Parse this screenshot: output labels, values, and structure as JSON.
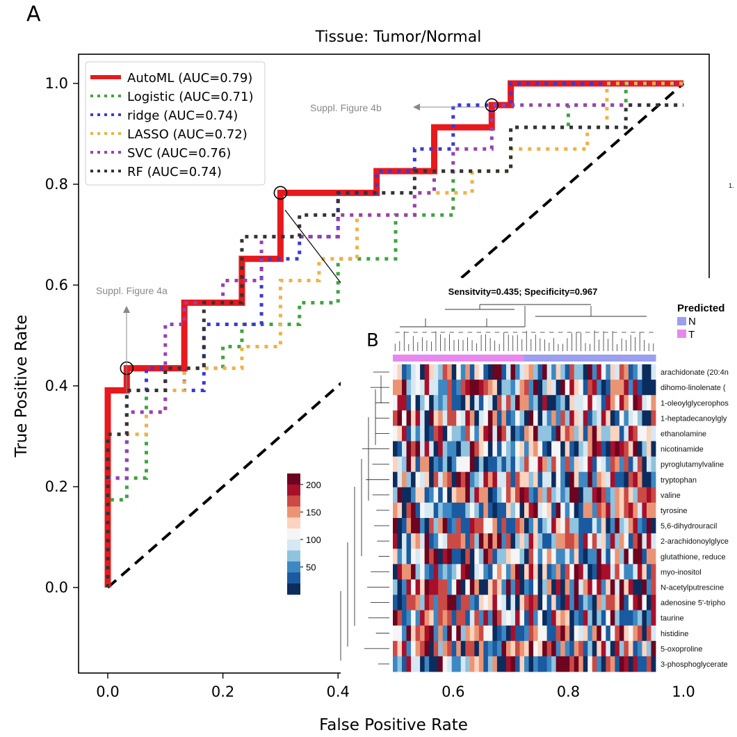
{
  "panel_a_label": "A",
  "panel_b_label": "B",
  "chart_data": [
    {
      "type": "line",
      "title": "Tissue: Tumor/Normal",
      "xlabel": "False Positive Rate",
      "ylabel": "True Positive Rate",
      "xlim": [
        0,
        1
      ],
      "ylim": [
        0,
        1
      ],
      "xticks": [
        "0.0",
        "0.2",
        "0.4",
        "0.6",
        "0.8",
        "1.0"
      ],
      "yticks": [
        "0.0",
        "0.2",
        "0.4",
        "0.6",
        "0.8",
        "1.0"
      ],
      "legend_position": "top-left",
      "grid": false,
      "series": [
        {
          "name": "AutoML (AUC=0.79)",
          "color": "#e8191c",
          "style": "solid",
          "x": [
            0,
            0,
            0.033,
            0.033,
            0.133,
            0.133,
            0.233,
            0.233,
            0.3,
            0.3,
            0.467,
            0.467,
            0.567,
            0.567,
            0.667,
            0.667,
            0.7,
            0.7,
            1.0
          ],
          "y": [
            0,
            0.391,
            0.391,
            0.435,
            0.435,
            0.565,
            0.565,
            0.652,
            0.652,
            0.783,
            0.783,
            0.826,
            0.826,
            0.913,
            0.913,
            0.957,
            0.957,
            1.0,
            1.0
          ]
        },
        {
          "name": "Logistic (AUC=0.71)",
          "color": "#3fa53f",
          "style": "dotted",
          "x": [
            0,
            0,
            0.033,
            0.033,
            0.067,
            0.067,
            0.1,
            0.1,
            0.2,
            0.2,
            0.233,
            0.233,
            0.333,
            0.333,
            0.4,
            0.4,
            0.5,
            0.5,
            0.6,
            0.6,
            0.7,
            0.7,
            0.8,
            0.8,
            0.9,
            0.9,
            1.0
          ],
          "y": [
            0,
            0.174,
            0.174,
            0.217,
            0.217,
            0.391,
            0.391,
            0.435,
            0.435,
            0.478,
            0.478,
            0.522,
            0.522,
            0.565,
            0.565,
            0.652,
            0.652,
            0.739,
            0.739,
            0.826,
            0.826,
            0.913,
            0.913,
            0.957,
            0.957,
            1.0,
            1.0
          ]
        },
        {
          "name": "ridge (AUC=0.74)",
          "color": "#3a3ad8",
          "style": "dotted",
          "x": [
            0,
            0,
            0.033,
            0.033,
            0.067,
            0.067,
            0.133,
            0.133,
            0.167,
            0.167,
            0.267,
            0.267,
            0.333,
            0.333,
            0.4,
            0.4,
            0.467,
            0.467,
            0.533,
            0.533,
            0.6,
            0.6,
            0.7,
            0.7,
            0.8,
            0.8,
            1.0
          ],
          "y": [
            0,
            0.217,
            0.217,
            0.391,
            0.391,
            0.435,
            0.435,
            0.391,
            0.391,
            0.522,
            0.522,
            0.652,
            0.652,
            0.696,
            0.696,
            0.783,
            0.783,
            0.826,
            0.826,
            0.87,
            0.87,
            0.957,
            0.957,
            1.0,
            1.0,
            1.0,
            1.0
          ]
        },
        {
          "name": "LASSO (AUC=0.72)",
          "color": "#f5b041",
          "style": "dotted",
          "x": [
            0,
            0,
            0.067,
            0.067,
            0.1,
            0.1,
            0.133,
            0.133,
            0.233,
            0.233,
            0.3,
            0.3,
            0.367,
            0.367,
            0.433,
            0.433,
            0.533,
            0.533,
            0.633,
            0.633,
            0.7,
            0.7,
            0.833,
            0.833,
            0.867,
            0.867,
            1.0
          ],
          "y": [
            0,
            0.304,
            0.304,
            0.348,
            0.348,
            0.391,
            0.391,
            0.435,
            0.435,
            0.478,
            0.478,
            0.609,
            0.609,
            0.652,
            0.652,
            0.739,
            0.739,
            0.783,
            0.783,
            0.826,
            0.826,
            0.87,
            0.87,
            0.913,
            0.913,
            1.0,
            1.0
          ]
        },
        {
          "name": "SVC (AUC=0.76)",
          "color": "#9b3fb5",
          "style": "dotted",
          "x": [
            0,
            0,
            0.033,
            0.033,
            0.1,
            0.1,
            0.133,
            0.133,
            0.2,
            0.2,
            0.267,
            0.267,
            0.4,
            0.4,
            0.467,
            0.467,
            0.533,
            0.533,
            0.567,
            0.567,
            0.6,
            0.6,
            0.667,
            0.667,
            0.733,
            0.733,
            1.0
          ],
          "y": [
            0,
            0.217,
            0.217,
            0.348,
            0.348,
            0.522,
            0.522,
            0.565,
            0.565,
            0.609,
            0.609,
            0.696,
            0.696,
            0.739,
            0.739,
            0.739,
            0.739,
            0.783,
            0.783,
            0.826,
            0.826,
            0.87,
            0.87,
            0.957,
            0.957,
            0.957,
            0.957
          ]
        },
        {
          "name": "RF (AUC=0.74)",
          "color": "#333333",
          "style": "dotted",
          "x": [
            0,
            0,
            0.033,
            0.033,
            0.1,
            0.1,
            0.167,
            0.167,
            0.233,
            0.233,
            0.333,
            0.333,
            0.4,
            0.4,
            0.467,
            0.467,
            0.533,
            0.533,
            0.633,
            0.633,
            0.7,
            0.7,
            0.8,
            0.8,
            0.9,
            0.9,
            1.0
          ],
          "y": [
            0,
            0.304,
            0.304,
            0.391,
            0.391,
            0.435,
            0.435,
            0.565,
            0.565,
            0.696,
            0.696,
            0.739,
            0.739,
            0.783,
            0.783,
            0.783,
            0.783,
            0.826,
            0.826,
            0.826,
            0.826,
            0.913,
            0.913,
            0.913,
            0.913,
            0.957,
            0.957
          ]
        },
        {
          "name": "",
          "color": "#000000",
          "style": "dashed",
          "x": [
            0,
            1
          ],
          "y": [
            0,
            1
          ]
        }
      ],
      "annotations": [
        {
          "text": "Suppl. Figure 4b",
          "point": [
            0.667,
            0.957
          ]
        },
        {
          "text": "Suppl. Figure 4a",
          "point": [
            0.033,
            0.435
          ]
        }
      ],
      "highlighted_points": [
        [
          0.033,
          0.435
        ],
        [
          0.3,
          0.783
        ],
        [
          0.667,
          0.957
        ]
      ]
    },
    {
      "type": "heatmap",
      "title": "Sensitvity=0.435; Specificity=0.967",
      "legend_title": "Predicted",
      "groups": [
        {
          "name": "N",
          "color": "#9b9ff0"
        },
        {
          "name": "T",
          "color": "#e788ee"
        }
      ],
      "column_groups": [
        "T",
        "T",
        "T",
        "T",
        "T",
        "T",
        "T",
        "T",
        "T",
        "T",
        "T",
        "T",
        "T",
        "T",
        "T",
        "T",
        "T",
        "T",
        "T",
        "T",
        "T",
        "T",
        "T",
        "T",
        "T",
        "T",
        "T",
        "T",
        "T",
        "N",
        "N",
        "N",
        "N",
        "N",
        "N",
        "N",
        "N",
        "N",
        "N",
        "N",
        "N",
        "N",
        "N",
        "N",
        "N",
        "N",
        "N",
        "N",
        "N",
        "N",
        "N",
        "N",
        "N",
        "N",
        "N",
        "N",
        "N",
        "N"
      ],
      "rows": [
        "arachidonate (20:4n",
        "dihomo-linolenate (",
        "1-oleoylglycerophos",
        "1-heptadecanoylgly",
        "ethanolamine",
        "nicotinamide",
        "pyroglutamylvaline",
        "tryptophan",
        "valine",
        "tyrosine",
        "5,6-dihydrouracil",
        "2-arachidonoylglyce",
        "glutathione, reduce",
        "myo-inositol",
        "N-acetylputrescine",
        "adenosine 5'-tripho",
        "taurine",
        "histidine",
        "5-oxoproline",
        "3-phosphoglycerate"
      ],
      "colorbar_ticks": [
        "200",
        "150",
        "100",
        "50"
      ],
      "value_range": [
        0,
        220
      ],
      "colormap": "RdBu_r"
    }
  ]
}
